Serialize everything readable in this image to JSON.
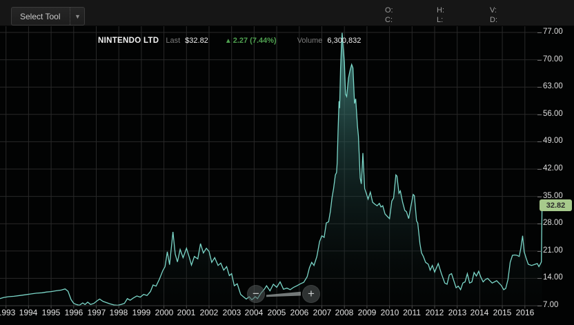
{
  "toolbar": {
    "select_tool_label": "Select Tool",
    "dropdown_glyph": "▼"
  },
  "ohlc": {
    "columns": [
      {
        "top": "O:",
        "bottom": "C:"
      },
      {
        "top": "H:",
        "bottom": "L:"
      },
      {
        "top": "V:",
        "bottom": "D:"
      }
    ]
  },
  "chart_header": {
    "symbol": "NINTENDO LTD",
    "last_label": "Last",
    "last_price": "$32.82",
    "change_icon": "▲",
    "change_text": "2.27 (7.44%)",
    "volume_label": "Volume",
    "volume_value": "6,300,832"
  },
  "zoom_controls": {
    "zoom_out_symbol": "−",
    "zoom_in_symbol": "+"
  },
  "chart_data": {
    "type": "area",
    "title": "NINTENDO LTD",
    "xlabel": "",
    "ylabel": "",
    "x_axis": {
      "tick_years": [
        1993,
        1994,
        1995,
        1996,
        1997,
        1998,
        1999,
        2000,
        2001,
        2002,
        2003,
        2004,
        2005,
        2006,
        2007,
        2008,
        2009,
        2010,
        2011,
        2012,
        2013,
        2014,
        2015,
        2016
      ],
      "tick_labels": [
        "1993",
        "1994",
        "1995",
        "1996",
        "1997",
        "1998",
        "1999",
        "2000",
        "2001",
        "2002",
        "2003",
        "2004",
        "2005",
        "2006",
        "2007",
        "2008",
        "2009",
        "2010",
        "2011",
        "2012",
        "2013",
        "2014",
        "2015",
        "2016"
      ]
    },
    "y_axis": {
      "ticks": [
        77,
        70,
        63,
        56,
        49,
        42,
        35,
        28,
        21,
        14,
        7
      ],
      "tick_labels": [
        "77.00",
        "70.00",
        "63.00",
        "56.00",
        "49.00",
        "42.00",
        "35.00",
        "28.00",
        "21.00",
        "14.00",
        "7.00"
      ],
      "range": [
        7,
        77
      ],
      "last_price": 32.82,
      "last_price_label": "32.82"
    },
    "legend": [],
    "grid": true,
    "colors": {
      "line": "#7bd7c9",
      "fill_top": "rgba(92,176,167,0.72)",
      "fill_mid": "rgba(44,92,88,0.50)",
      "fill_bottom": "rgba(8,16,15,0.10)",
      "grid": "#292929",
      "axis_line": "#3d3d3d",
      "badge_bg": "#a7ca8c",
      "badge_text": "#2c2c2c",
      "change_green": "#4fa050"
    },
    "series": [
      {
        "name": "NINTENDO LTD",
        "points": [
          [
            1992.72,
            8.8
          ],
          [
            1992.9,
            9.1
          ],
          [
            1993.1,
            9.3
          ],
          [
            1993.35,
            9.4
          ],
          [
            1993.6,
            9.6
          ],
          [
            1993.85,
            9.8
          ],
          [
            1994.1,
            10.0
          ],
          [
            1994.35,
            10.2
          ],
          [
            1994.6,
            10.3
          ],
          [
            1994.8,
            10.5
          ],
          [
            1995.0,
            10.6
          ],
          [
            1995.2,
            10.8
          ],
          [
            1995.45,
            11.0
          ],
          [
            1995.62,
            11.3
          ],
          [
            1995.75,
            10.7
          ],
          [
            1995.88,
            8.6
          ],
          [
            1996.0,
            7.6
          ],
          [
            1996.12,
            7.3
          ],
          [
            1996.25,
            7.1
          ],
          [
            1996.4,
            7.7
          ],
          [
            1996.5,
            7.3
          ],
          [
            1996.62,
            7.9
          ],
          [
            1996.75,
            7.3
          ],
          [
            1996.9,
            7.6
          ],
          [
            1997.05,
            8.3
          ],
          [
            1997.15,
            8.7
          ],
          [
            1997.3,
            8.1
          ],
          [
            1997.45,
            7.8
          ],
          [
            1997.6,
            7.5
          ],
          [
            1997.78,
            7.2
          ],
          [
            1997.95,
            7.1
          ],
          [
            1998.1,
            7.3
          ],
          [
            1998.25,
            7.6
          ],
          [
            1998.38,
            8.8
          ],
          [
            1998.5,
            8.4
          ],
          [
            1998.65,
            9.0
          ],
          [
            1998.8,
            9.5
          ],
          [
            1998.95,
            9.2
          ],
          [
            1999.1,
            9.9
          ],
          [
            1999.25,
            9.6
          ],
          [
            1999.4,
            10.6
          ],
          [
            1999.52,
            12.3
          ],
          [
            1999.65,
            12.0
          ],
          [
            1999.8,
            13.8
          ],
          [
            1999.95,
            16.0
          ],
          [
            2000.05,
            17.0
          ],
          [
            2000.15,
            20.8
          ],
          [
            2000.25,
            17.5
          ],
          [
            2000.4,
            25.9
          ],
          [
            2000.5,
            20.2
          ],
          [
            2000.6,
            18.2
          ],
          [
            2000.72,
            21.4
          ],
          [
            2000.85,
            19.3
          ],
          [
            2001.0,
            21.7
          ],
          [
            2001.12,
            19.5
          ],
          [
            2001.22,
            17.4
          ],
          [
            2001.35,
            19.6
          ],
          [
            2001.5,
            19.0
          ],
          [
            2001.62,
            22.9
          ],
          [
            2001.75,
            20.5
          ],
          [
            2001.88,
            21.7
          ],
          [
            2002.0,
            20.9
          ],
          [
            2002.12,
            18.1
          ],
          [
            2002.25,
            19.3
          ],
          [
            2002.4,
            17.3
          ],
          [
            2002.52,
            17.9
          ],
          [
            2002.65,
            16.1
          ],
          [
            2002.78,
            17.0
          ],
          [
            2002.9,
            14.7
          ],
          [
            2003.0,
            15.2
          ],
          [
            2003.12,
            12.1
          ],
          [
            2003.25,
            12.6
          ],
          [
            2003.4,
            9.9
          ],
          [
            2003.52,
            9.3
          ],
          [
            2003.65,
            8.7
          ],
          [
            2003.78,
            9.3
          ],
          [
            2003.9,
            8.5
          ],
          [
            2004.05,
            9.3
          ],
          [
            2004.15,
            8.8
          ],
          [
            2004.3,
            10.2
          ],
          [
            2004.45,
            11.2
          ],
          [
            2004.55,
            12.1
          ],
          [
            2004.7,
            10.8
          ],
          [
            2004.85,
            12.5
          ],
          [
            2005.0,
            11.7
          ],
          [
            2005.15,
            13.1
          ],
          [
            2005.3,
            11.2
          ],
          [
            2005.45,
            11.5
          ],
          [
            2005.6,
            11.1
          ],
          [
            2005.75,
            11.7
          ],
          [
            2005.9,
            12.1
          ],
          [
            2006.05,
            12.6
          ],
          [
            2006.2,
            13.0
          ],
          [
            2006.35,
            14.4
          ],
          [
            2006.45,
            16.7
          ],
          [
            2006.55,
            18.1
          ],
          [
            2006.65,
            17.3
          ],
          [
            2006.78,
            19.6
          ],
          [
            2006.9,
            23.4
          ],
          [
            2007.0,
            24.9
          ],
          [
            2007.1,
            24.5
          ],
          [
            2007.2,
            28.2
          ],
          [
            2007.3,
            28.5
          ],
          [
            2007.38,
            31.2
          ],
          [
            2007.45,
            34.6
          ],
          [
            2007.52,
            37.0
          ],
          [
            2007.6,
            40.5
          ],
          [
            2007.65,
            41.1
          ],
          [
            2007.68,
            43.5
          ],
          [
            2007.72,
            51.7
          ],
          [
            2007.76,
            59.4
          ],
          [
            2007.79,
            57.6
          ],
          [
            2007.83,
            67.6
          ],
          [
            2007.87,
            73.5
          ],
          [
            2007.9,
            76.9
          ],
          [
            2007.95,
            72.7
          ],
          [
            2008.0,
            69.4
          ],
          [
            2008.05,
            61.2
          ],
          [
            2008.1,
            60.6
          ],
          [
            2008.18,
            65.3
          ],
          [
            2008.25,
            67.3
          ],
          [
            2008.32,
            68.8
          ],
          [
            2008.38,
            67.9
          ],
          [
            2008.45,
            58.8
          ],
          [
            2008.5,
            60.0
          ],
          [
            2008.58,
            52.9
          ],
          [
            2008.62,
            50.5
          ],
          [
            2008.7,
            39.7
          ],
          [
            2008.75,
            38.2
          ],
          [
            2008.82,
            46.1
          ],
          [
            2008.9,
            37.0
          ],
          [
            2008.97,
            35.8
          ],
          [
            2009.05,
            34.3
          ],
          [
            2009.15,
            36.1
          ],
          [
            2009.25,
            33.5
          ],
          [
            2009.35,
            33.0
          ],
          [
            2009.45,
            32.6
          ],
          [
            2009.55,
            33.2
          ],
          [
            2009.62,
            32.3
          ],
          [
            2009.7,
            32.6
          ],
          [
            2009.8,
            30.5
          ],
          [
            2009.9,
            29.9
          ],
          [
            2010.0,
            29.3
          ],
          [
            2010.1,
            33.8
          ],
          [
            2010.18,
            34.6
          ],
          [
            2010.28,
            40.5
          ],
          [
            2010.33,
            40.2
          ],
          [
            2010.42,
            35.8
          ],
          [
            2010.48,
            36.4
          ],
          [
            2010.58,
            33.5
          ],
          [
            2010.68,
            31.4
          ],
          [
            2010.75,
            31.1
          ],
          [
            2010.85,
            29.3
          ],
          [
            2010.95,
            32.6
          ],
          [
            2011.05,
            35.5
          ],
          [
            2011.1,
            35.2
          ],
          [
            2011.2,
            28.7
          ],
          [
            2011.25,
            28.2
          ],
          [
            2011.35,
            22.9
          ],
          [
            2011.42,
            20.5
          ],
          [
            2011.5,
            19.6
          ],
          [
            2011.6,
            18.1
          ],
          [
            2011.72,
            17.6
          ],
          [
            2011.8,
            16.1
          ],
          [
            2011.9,
            17.3
          ],
          [
            2012.0,
            15.6
          ],
          [
            2012.16,
            17.8
          ],
          [
            2012.3,
            15.2
          ],
          [
            2012.45,
            12.8
          ],
          [
            2012.55,
            12.5
          ],
          [
            2012.65,
            14.9
          ],
          [
            2012.75,
            15.2
          ],
          [
            2012.85,
            13.4
          ],
          [
            2012.95,
            11.6
          ],
          [
            2013.05,
            12.0
          ],
          [
            2013.15,
            11.1
          ],
          [
            2013.25,
            12.8
          ],
          [
            2013.35,
            13.1
          ],
          [
            2013.45,
            15.2
          ],
          [
            2013.55,
            12.8
          ],
          [
            2013.65,
            13.1
          ],
          [
            2013.75,
            15.5
          ],
          [
            2013.85,
            14.6
          ],
          [
            2013.95,
            15.8
          ],
          [
            2014.05,
            14.3
          ],
          [
            2014.15,
            13.1
          ],
          [
            2014.25,
            13.7
          ],
          [
            2014.35,
            14.0
          ],
          [
            2014.45,
            13.4
          ],
          [
            2014.55,
            12.8
          ],
          [
            2014.65,
            13.1
          ],
          [
            2014.75,
            13.4
          ],
          [
            2014.85,
            12.8
          ],
          [
            2014.95,
            12.2
          ],
          [
            2015.06,
            11.1
          ],
          [
            2015.15,
            11.4
          ],
          [
            2015.25,
            13.7
          ],
          [
            2015.35,
            18.1
          ],
          [
            2015.45,
            19.9
          ],
          [
            2015.55,
            20.0
          ],
          [
            2015.65,
            19.9
          ],
          [
            2015.75,
            19.6
          ],
          [
            2015.82,
            21.7
          ],
          [
            2015.9,
            24.9
          ],
          [
            2015.97,
            20.8
          ],
          [
            2016.05,
            19.3
          ],
          [
            2016.15,
            17.6
          ],
          [
            2016.3,
            17.3
          ],
          [
            2016.45,
            17.6
          ],
          [
            2016.55,
            17.8
          ],
          [
            2016.62,
            17.0
          ],
          [
            2016.68,
            17.6
          ],
          [
            2016.73,
            18.2
          ],
          [
            2016.76,
            32.82
          ]
        ]
      }
    ]
  }
}
